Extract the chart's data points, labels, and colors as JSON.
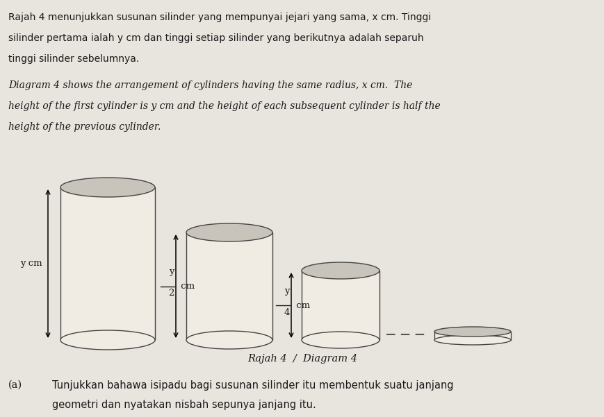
{
  "background_color": "#e8e4de",
  "text_color": "#1a1a1a",
  "title_line1_malay": "Rajah 4 menunjukkan susunan silinder yang mempunyai jejari yang sama, x cm. Tinggi",
  "title_line2_malay": "silinder pertama ialah y cm dan tinggi setiap silinder yang berikutnya adalah separuh",
  "title_line3_malay": "tinggi silinder sebelumnya.",
  "title_line1_eng": "Diagram 4 shows the arrangement of cylinders having the same radius, x cm.  The",
  "title_line2_eng": "height of the first cylinder is y cm and the height of each subsequent cylinder is half the",
  "title_line3_eng": "height of the previous cylinder.",
  "caption": "Rajah 4  /  Diagram 4",
  "question_label": "(a)",
  "question_line1": "Tunjukkan bahawa isipadu bagi susunan silinder itu membentuk suatu janjang",
  "question_line2": "geometri dan nyatakan nisbah sepunya janjang itu.",
  "cylinder_fill": "#f0ece4",
  "cylinder_edge": "#444444",
  "cylinder_top_fill": "#c8c4bc",
  "cylinder_shade": "#dedad2"
}
